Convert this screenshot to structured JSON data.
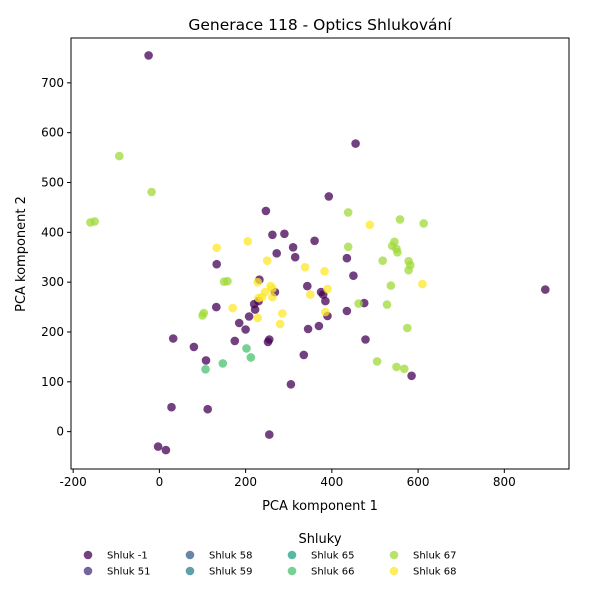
{
  "chart_data": {
    "type": "scatter",
    "title": "Generace 118 - Optics Shlukování",
    "xlabel": "PCA komponent 1",
    "ylabel": "PCA komponent 2",
    "xlim": [
      -205,
      950
    ],
    "ylim": [
      -75,
      790
    ],
    "xticks": [
      "-200",
      "0",
      "200",
      "400",
      "600",
      "800"
    ],
    "yticks": [
      "0",
      "100",
      "200",
      "300",
      "400",
      "500",
      "600",
      "700"
    ],
    "grid": false,
    "legend_title": "Shluky",
    "legend_placement": "bottom",
    "series": [
      {
        "name": "Shluk -1",
        "color": "#440154",
        "points": [
          [
            -25,
            755
          ],
          [
            455,
            578
          ],
          [
            393,
            472
          ],
          [
            247,
            443
          ],
          [
            262,
            395
          ],
          [
            290,
            397
          ],
          [
            360,
            383
          ],
          [
            310,
            370
          ],
          [
            272,
            358
          ],
          [
            315,
            350
          ],
          [
            435,
            348
          ],
          [
            133,
            336
          ],
          [
            450,
            313
          ],
          [
            232,
            305
          ],
          [
            343,
            292
          ],
          [
            375,
            280
          ],
          [
            268,
            280
          ],
          [
            380,
            275
          ],
          [
            230,
            262
          ],
          [
            385,
            262
          ],
          [
            475,
            258
          ],
          [
            220,
            256
          ],
          [
            132,
            250
          ],
          [
            222,
            245
          ],
          [
            435,
            242
          ],
          [
            390,
            232
          ],
          [
            208,
            231
          ],
          [
            185,
            218
          ],
          [
            370,
            212
          ],
          [
            200,
            205
          ],
          [
            345,
            206
          ],
          [
            32,
            187
          ],
          [
            478,
            185
          ],
          [
            255,
            185
          ],
          [
            252,
            180
          ],
          [
            175,
            182
          ],
          [
            80,
            170
          ],
          [
            335,
            154
          ],
          [
            108,
            143
          ],
          [
            585,
            112
          ],
          [
            305,
            95
          ],
          [
            28,
            49
          ],
          [
            112,
            45
          ],
          [
            -3,
            -30
          ],
          [
            15,
            -37
          ],
          [
            255,
            -6
          ],
          [
            895,
            285
          ]
        ]
      },
      {
        "name": "Shluk 51",
        "color": "#46327e",
        "points": []
      },
      {
        "name": "Shluk 58",
        "color": "#365c8d",
        "points": []
      },
      {
        "name": "Shluk 59",
        "color": "#277f8e",
        "points": []
      },
      {
        "name": "Shluk 65",
        "color": "#1fa187",
        "points": []
      },
      {
        "name": "Shluk 66",
        "color": "#4ac16d",
        "points": [
          [
            212,
            149
          ],
          [
            202,
            167
          ],
          [
            147,
            137
          ],
          [
            107,
            125
          ]
        ]
      },
      {
        "name": "Shluk 67",
        "color": "#a0da39",
        "points": [
          [
            -93,
            553
          ],
          [
            -18,
            481
          ],
          [
            -160,
            420
          ],
          [
            -150,
            422
          ],
          [
            438,
            440
          ],
          [
            613,
            418
          ],
          [
            558,
            426
          ],
          [
            545,
            381
          ],
          [
            550,
            367
          ],
          [
            540,
            373
          ],
          [
            552,
            360
          ],
          [
            438,
            371
          ],
          [
            518,
            343
          ],
          [
            578,
            342
          ],
          [
            582,
            334
          ],
          [
            578,
            324
          ],
          [
            150,
            301
          ],
          [
            158,
            302
          ],
          [
            103,
            238
          ],
          [
            100,
            233
          ],
          [
            462,
            257
          ],
          [
            528,
            255
          ],
          [
            537,
            293
          ],
          [
            575,
            208
          ],
          [
            505,
            141
          ],
          [
            550,
            130
          ],
          [
            568,
            126
          ]
        ]
      },
      {
        "name": "Shluk 68",
        "color": "#fde725",
        "points": [
          [
            133,
            369
          ],
          [
            205,
            382
          ],
          [
            488,
            415
          ],
          [
            250,
            343
          ],
          [
            338,
            330
          ],
          [
            383,
            322
          ],
          [
            610,
            296
          ],
          [
            258,
            292
          ],
          [
            262,
            287
          ],
          [
            228,
            300
          ],
          [
            245,
            280
          ],
          [
            390,
            286
          ],
          [
            350,
            275
          ],
          [
            238,
            270
          ],
          [
            230,
            268
          ],
          [
            262,
            270
          ],
          [
            170,
            248
          ],
          [
            285,
            237
          ],
          [
            385,
            240
          ],
          [
            228,
            228
          ],
          [
            280,
            216
          ]
        ]
      }
    ]
  }
}
